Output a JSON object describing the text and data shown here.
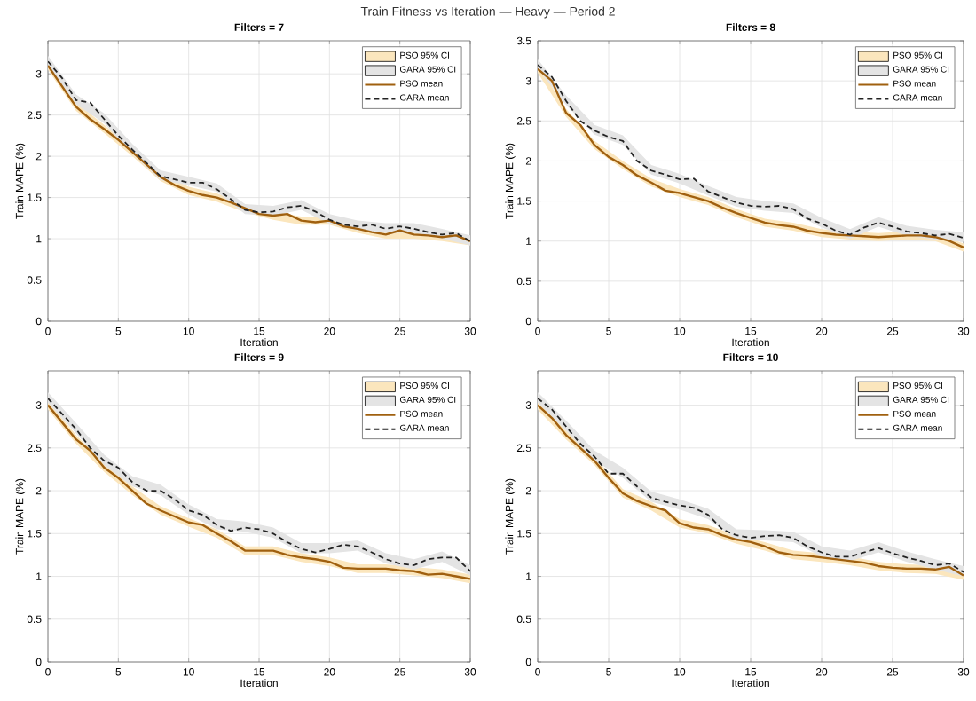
{
  "chart_data": [
    {
      "type": "line",
      "title": "Filters = 7",
      "xlabel": "Iteration",
      "ylabel": "Train MAPE (%)",
      "annotations": [
        "Train Fitness vs Iteration — Heavy — Period 2"
      ],
      "xlim": [
        0,
        30
      ],
      "ylim": [
        0,
        3.4
      ],
      "xticks": [
        0,
        5,
        10,
        15,
        20,
        25,
        30
      ],
      "yticks": [
        0,
        0.5,
        1,
        1.5,
        2,
        2.5,
        3
      ],
      "grid": true,
      "legend": "top right",
      "x": [
        0,
        1,
        2,
        3,
        4,
        5,
        6,
        7,
        8,
        9,
        10,
        11,
        12,
        13,
        14,
        15,
        16,
        17,
        18,
        19,
        20,
        21,
        22,
        23,
        24,
        25,
        26,
        27,
        28,
        29,
        30
      ],
      "series": [
        {
          "name": "PSO 95% CI",
          "type": "area",
          "color": "#fbe6bd",
          "x": [
            0,
            2,
            4,
            6,
            8,
            10,
            12,
            14,
            16,
            18,
            20,
            22,
            24,
            26,
            28,
            30
          ],
          "values": [
            null,
            null,
            null,
            null,
            null,
            null,
            null,
            null,
            null,
            null,
            null,
            null,
            null,
            null,
            null,
            null
          ],
          "upper": [
            3.15,
            2.65,
            2.38,
            2.1,
            1.8,
            1.63,
            1.55,
            1.42,
            1.33,
            1.27,
            1.27,
            1.17,
            1.1,
            1.1,
            1.07,
            1.02
          ],
          "lower": [
            3.05,
            2.55,
            2.28,
            2.0,
            1.7,
            1.53,
            1.45,
            1.32,
            1.23,
            1.17,
            1.17,
            1.07,
            1.0,
            1.0,
            0.97,
            0.92
          ]
        },
        {
          "name": "GARA 95% CI",
          "type": "area",
          "color": "#e4e4e4",
          "x": [
            0,
            2,
            4,
            6,
            8,
            10,
            12,
            14,
            16,
            18,
            20,
            22,
            24,
            26,
            28,
            30
          ],
          "values": [
            null,
            null,
            null,
            null,
            null,
            null,
            null,
            null,
            null,
            null,
            null,
            null,
            null,
            null,
            null,
            null
          ],
          "upper": [
            3.22,
            2.75,
            2.52,
            2.15,
            1.83,
            1.75,
            1.67,
            1.42,
            1.4,
            1.47,
            1.3,
            1.22,
            1.19,
            1.19,
            1.12,
            1.04
          ],
          "lower": [
            3.1,
            2.63,
            2.4,
            2.03,
            1.71,
            1.65,
            1.57,
            1.3,
            1.28,
            1.35,
            1.18,
            1.1,
            1.07,
            1.07,
            1.0,
            0.92
          ]
        },
        {
          "name": "PSO mean",
          "type": "line",
          "color": "#a0600f",
          "line_style": "solid",
          "values": [
            3.1,
            2.85,
            2.6,
            2.45,
            2.33,
            2.2,
            2.05,
            1.9,
            1.75,
            1.65,
            1.58,
            1.53,
            1.5,
            1.44,
            1.37,
            1.3,
            1.28,
            1.3,
            1.22,
            1.2,
            1.22,
            1.15,
            1.12,
            1.08,
            1.05,
            1.1,
            1.05,
            1.04,
            1.02,
            1.04,
            0.97
          ]
        },
        {
          "name": "GARA mean",
          "type": "line",
          "color": "#222222",
          "line_style": "dashed",
          "values": [
            3.15,
            2.95,
            2.68,
            2.65,
            2.45,
            2.25,
            2.08,
            1.92,
            1.76,
            1.72,
            1.68,
            1.68,
            1.6,
            1.48,
            1.35,
            1.32,
            1.33,
            1.38,
            1.4,
            1.33,
            1.23,
            1.17,
            1.15,
            1.17,
            1.12,
            1.15,
            1.12,
            1.08,
            1.05,
            1.07,
            0.97
          ]
        }
      ]
    },
    {
      "type": "line",
      "title": "Filters = 8",
      "xlabel": "Iteration",
      "ylabel": "Train MAPE (%)",
      "xlim": [
        0,
        30
      ],
      "ylim": [
        0,
        3.5
      ],
      "xticks": [
        0,
        5,
        10,
        15,
        20,
        25,
        30
      ],
      "yticks": [
        0,
        0.5,
        1,
        1.5,
        2,
        2.5,
        3,
        3.5
      ],
      "grid": true,
      "legend": "top right",
      "x": [
        0,
        1,
        2,
        3,
        4,
        5,
        6,
        7,
        8,
        9,
        10,
        11,
        12,
        13,
        14,
        15,
        16,
        17,
        18,
        19,
        20,
        21,
        22,
        23,
        24,
        25,
        26,
        27,
        28,
        29,
        30
      ],
      "series": [
        {
          "name": "PSO 95% CI",
          "type": "area",
          "color": "#fbe6bd",
          "x": [
            0,
            2,
            4,
            6,
            8,
            10,
            12,
            14,
            16,
            18,
            20,
            22,
            24,
            26,
            28,
            30
          ],
          "values": [
            null,
            null,
            null,
            null,
            null,
            null,
            null,
            null,
            null,
            null,
            null,
            null,
            null,
            null,
            null,
            null
          ],
          "upper": [
            3.2,
            2.65,
            2.25,
            2.0,
            1.78,
            1.65,
            1.55,
            1.4,
            1.28,
            1.23,
            1.15,
            1.12,
            1.1,
            1.12,
            1.1,
            0.97
          ],
          "lower": [
            3.1,
            2.55,
            2.15,
            1.9,
            1.68,
            1.55,
            1.45,
            1.3,
            1.18,
            1.13,
            1.05,
            1.02,
            1.0,
            1.02,
            1.0,
            0.87
          ]
        },
        {
          "name": "GARA 95% CI",
          "type": "area",
          "color": "#e4e4e4",
          "x": [
            0,
            2,
            4,
            6,
            8,
            10,
            12,
            14,
            16,
            18,
            20,
            22,
            24,
            26,
            28,
            30
          ],
          "values": [
            null,
            null,
            null,
            null,
            null,
            null,
            null,
            null,
            null,
            null,
            null,
            null,
            null,
            null,
            null,
            null
          ],
          "upper": [
            3.27,
            2.82,
            2.45,
            2.32,
            1.95,
            1.84,
            1.69,
            1.55,
            1.5,
            1.47,
            1.29,
            1.15,
            1.3,
            1.19,
            1.14,
            1.11
          ],
          "lower": [
            3.15,
            2.7,
            2.33,
            2.2,
            1.83,
            1.72,
            1.57,
            1.43,
            1.38,
            1.35,
            1.17,
            1.03,
            1.18,
            1.07,
            1.02,
            0.99
          ]
        },
        {
          "name": "PSO mean",
          "type": "line",
          "color": "#a0600f",
          "line_style": "solid",
          "values": [
            3.15,
            3.0,
            2.6,
            2.45,
            2.2,
            2.05,
            1.95,
            1.82,
            1.73,
            1.63,
            1.6,
            1.55,
            1.5,
            1.42,
            1.35,
            1.29,
            1.23,
            1.2,
            1.18,
            1.13,
            1.1,
            1.08,
            1.07,
            1.06,
            1.05,
            1.06,
            1.07,
            1.07,
            1.05,
            1.0,
            0.92
          ]
        },
        {
          "name": "GARA mean",
          "type": "line",
          "color": "#222222",
          "line_style": "dashed",
          "values": [
            3.2,
            3.05,
            2.75,
            2.5,
            2.38,
            2.3,
            2.25,
            2.0,
            1.88,
            1.83,
            1.77,
            1.78,
            1.62,
            1.55,
            1.48,
            1.44,
            1.43,
            1.44,
            1.4,
            1.28,
            1.22,
            1.13,
            1.08,
            1.17,
            1.23,
            1.18,
            1.12,
            1.1,
            1.07,
            1.09,
            1.04
          ]
        }
      ]
    },
    {
      "type": "line",
      "title": "Filters = 9",
      "xlabel": "Iteration",
      "ylabel": "Train MAPE (%)",
      "xlim": [
        0,
        30
      ],
      "ylim": [
        0,
        3.4
      ],
      "xticks": [
        0,
        5,
        10,
        15,
        20,
        25,
        30
      ],
      "yticks": [
        0,
        0.5,
        1,
        1.5,
        2,
        2.5,
        3
      ],
      "grid": true,
      "legend": "top right",
      "x": [
        0,
        1,
        2,
        3,
        4,
        5,
        6,
        7,
        8,
        9,
        10,
        11,
        12,
        13,
        14,
        15,
        16,
        17,
        18,
        19,
        20,
        21,
        22,
        23,
        24,
        25,
        26,
        27,
        28,
        29,
        30
      ],
      "series": [
        {
          "name": "PSO 95% CI",
          "type": "area",
          "color": "#fbe6bd",
          "x": [
            0,
            2,
            4,
            6,
            8,
            10,
            12,
            14,
            16,
            18,
            20,
            22,
            24,
            26,
            28,
            30
          ],
          "values": [
            null,
            null,
            null,
            null,
            null,
            null,
            null,
            null,
            null,
            null,
            null,
            null,
            null,
            null,
            null,
            null
          ],
          "upper": [
            3.05,
            2.65,
            2.32,
            2.05,
            1.82,
            1.68,
            1.55,
            1.35,
            1.35,
            1.27,
            1.22,
            1.14,
            1.14,
            1.11,
            1.08,
            1.02
          ],
          "lower": [
            2.95,
            2.55,
            2.22,
            1.95,
            1.72,
            1.58,
            1.45,
            1.25,
            1.25,
            1.17,
            1.12,
            1.04,
            1.04,
            1.01,
            0.98,
            0.92
          ]
        },
        {
          "name": "GARA 95% CI",
          "type": "area",
          "color": "#e4e4e4",
          "x": [
            0,
            2,
            4,
            6,
            8,
            10,
            12,
            14,
            16,
            18,
            20,
            22,
            24,
            26,
            28,
            30
          ],
          "values": [
            null,
            null,
            null,
            null,
            null,
            null,
            null,
            null,
            null,
            null,
            null,
            null,
            null,
            null,
            null,
            null
          ],
          "upper": [
            3.15,
            2.79,
            2.42,
            2.17,
            2.07,
            1.84,
            1.67,
            1.64,
            1.57,
            1.39,
            1.39,
            1.42,
            1.27,
            1.2,
            1.29,
            1.13
          ],
          "lower": [
            3.03,
            2.67,
            2.3,
            2.05,
            1.95,
            1.72,
            1.55,
            1.52,
            1.45,
            1.27,
            1.27,
            1.3,
            1.15,
            1.08,
            1.17,
            1.01
          ]
        },
        {
          "name": "PSO mean",
          "type": "line",
          "color": "#a0600f",
          "line_style": "solid",
          "values": [
            3.0,
            2.8,
            2.6,
            2.47,
            2.27,
            2.15,
            2.0,
            1.85,
            1.77,
            1.7,
            1.63,
            1.6,
            1.5,
            1.41,
            1.3,
            1.3,
            1.3,
            1.25,
            1.22,
            1.2,
            1.17,
            1.1,
            1.09,
            1.09,
            1.09,
            1.07,
            1.06,
            1.02,
            1.03,
            1.0,
            0.97
          ]
        },
        {
          "name": "GARA mean",
          "type": "line",
          "color": "#222222",
          "line_style": "dashed",
          "values": [
            3.08,
            2.9,
            2.72,
            2.5,
            2.35,
            2.27,
            2.1,
            2.0,
            2.0,
            1.9,
            1.77,
            1.72,
            1.6,
            1.53,
            1.57,
            1.55,
            1.5,
            1.4,
            1.32,
            1.28,
            1.32,
            1.37,
            1.35,
            1.28,
            1.2,
            1.15,
            1.13,
            1.2,
            1.22,
            1.22,
            1.06
          ]
        }
      ]
    },
    {
      "type": "line",
      "title": "Filters = 10",
      "xlabel": "Iteration",
      "ylabel": "Train MAPE (%)",
      "xlim": [
        0,
        30
      ],
      "ylim": [
        0,
        3.4
      ],
      "xticks": [
        0,
        5,
        10,
        15,
        20,
        25,
        30
      ],
      "yticks": [
        0,
        0.5,
        1,
        1.5,
        2,
        2.5,
        3
      ],
      "grid": true,
      "legend": "top right",
      "x": [
        0,
        1,
        2,
        3,
        4,
        5,
        6,
        7,
        8,
        9,
        10,
        11,
        12,
        13,
        14,
        15,
        16,
        17,
        18,
        19,
        20,
        21,
        22,
        23,
        24,
        25,
        26,
        27,
        28,
        29,
        30
      ],
      "series": [
        {
          "name": "PSO 95% CI",
          "type": "area",
          "color": "#fbe6bd",
          "x": [
            0,
            2,
            4,
            6,
            8,
            10,
            12,
            14,
            16,
            18,
            20,
            22,
            24,
            26,
            28,
            30
          ],
          "values": [
            null,
            null,
            null,
            null,
            null,
            null,
            null,
            null,
            null,
            null,
            null,
            null,
            null,
            null,
            null,
            null
          ],
          "upper": [
            3.05,
            2.7,
            2.4,
            2.02,
            1.87,
            1.67,
            1.6,
            1.48,
            1.4,
            1.3,
            1.27,
            1.23,
            1.17,
            1.14,
            1.13,
            1.06
          ],
          "lower": [
            2.95,
            2.6,
            2.3,
            1.92,
            1.77,
            1.57,
            1.5,
            1.38,
            1.3,
            1.2,
            1.17,
            1.13,
            1.07,
            1.04,
            1.03,
            0.96
          ]
        },
        {
          "name": "GARA 95% CI",
          "type": "area",
          "color": "#e4e4e4",
          "x": [
            0,
            2,
            4,
            6,
            8,
            10,
            12,
            14,
            16,
            18,
            20,
            22,
            24,
            26,
            28,
            30
          ],
          "values": [
            null,
            null,
            null,
            null,
            null,
            null,
            null,
            null,
            null,
            null,
            null,
            null,
            null,
            null,
            null,
            null
          ],
          "upper": [
            3.15,
            2.82,
            2.47,
            2.27,
            1.99,
            1.9,
            1.79,
            1.55,
            1.54,
            1.52,
            1.35,
            1.3,
            1.4,
            1.29,
            1.2,
            1.12
          ],
          "lower": [
            3.03,
            2.7,
            2.35,
            2.15,
            1.87,
            1.78,
            1.67,
            1.43,
            1.42,
            1.4,
            1.23,
            1.18,
            1.28,
            1.17,
            1.08,
            1.0
          ]
        },
        {
          "name": "PSO mean",
          "type": "line",
          "color": "#a0600f",
          "line_style": "solid",
          "values": [
            3.0,
            2.85,
            2.65,
            2.5,
            2.35,
            2.15,
            1.97,
            1.88,
            1.82,
            1.77,
            1.62,
            1.57,
            1.55,
            1.48,
            1.43,
            1.4,
            1.35,
            1.28,
            1.25,
            1.24,
            1.22,
            1.2,
            1.18,
            1.16,
            1.12,
            1.1,
            1.09,
            1.09,
            1.08,
            1.11,
            1.01
          ]
        },
        {
          "name": "GARA mean",
          "type": "line",
          "color": "#222222",
          "line_style": "dashed",
          "values": [
            3.08,
            2.95,
            2.75,
            2.55,
            2.4,
            2.2,
            2.2,
            2.05,
            1.92,
            1.87,
            1.83,
            1.8,
            1.72,
            1.55,
            1.48,
            1.45,
            1.47,
            1.48,
            1.45,
            1.35,
            1.28,
            1.23,
            1.23,
            1.28,
            1.33,
            1.27,
            1.22,
            1.18,
            1.13,
            1.15,
            1.05
          ]
        }
      ]
    }
  ]
}
